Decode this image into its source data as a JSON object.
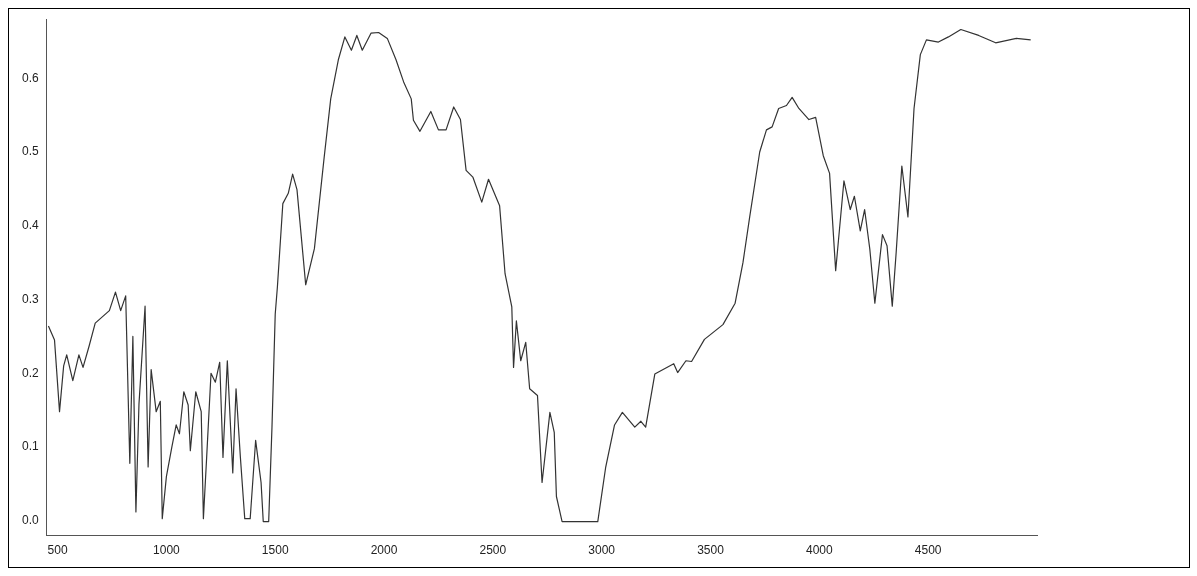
{
  "chart_data": {
    "type": "line",
    "xlim": [
      450,
      5000
    ],
    "ylim": [
      -0.02,
      0.68
    ],
    "xticks": [
      500,
      1000,
      1500,
      2000,
      2500,
      3000,
      3500,
      4000,
      4500
    ],
    "yticks": [
      {
        "value": 0,
        "label": "0.0"
      },
      {
        "value": 0.1,
        "label": "0.1"
      },
      {
        "value": 0.2,
        "label": "0.2"
      },
      {
        "value": 0.3,
        "label": "0.3"
      },
      {
        "value": 0.4,
        "label": "0.4"
      },
      {
        "value": 0.5,
        "label": "0.5"
      },
      {
        "value": 0.6,
        "label": "0.6"
      }
    ],
    "grid": false,
    "legend": false,
    "marker": "none",
    "line_style": "solid",
    "series": [
      {
        "color": "#333333",
        "x": [
          458,
          486,
          509,
          528,
          542,
          570,
          598,
          617,
          645,
          673,
          738,
          766,
          790,
          813,
          832,
          846,
          860,
          874,
          902,
          916,
          930,
          953,
          972,
          981,
          1000,
          1025,
          1045,
          1060,
          1080,
          1100,
          1110,
          1135,
          1160,
          1170,
          1185,
          1205,
          1225,
          1245,
          1260,
          1280,
          1305,
          1320,
          1340,
          1360,
          1385,
          1410,
          1435,
          1445,
          1470,
          1485,
          1500,
          1510,
          1535,
          1560,
          1580,
          1600,
          1640,
          1680,
          1725,
          1755,
          1790,
          1820,
          1850,
          1875,
          1900,
          1940,
          1975,
          2015,
          2055,
          2090,
          2125,
          2135,
          2165,
          2215,
          2250,
          2285,
          2320,
          2351,
          2377,
          2408,
          2449,
          2480,
          2531,
          2556,
          2587,
          2595,
          2608,
          2628,
          2651,
          2669,
          2705,
          2726,
          2762,
          2782,
          2792,
          2818,
          2982,
          3018,
          3059,
          3095,
          3152,
          3180,
          3202,
          3244,
          3331,
          3349,
          3387,
          3413,
          3472,
          3557,
          3613,
          3649,
          3680,
          3726,
          3757,
          3783,
          3813,
          3849,
          3875,
          3906,
          3952,
          3983,
          4018,
          4047,
          4075,
          4113,
          4142,
          4161,
          4188,
          4208,
          4232,
          4255,
          4290,
          4311,
          4335,
          4353,
          4379,
          4407,
          4435,
          4464,
          4492,
          4547,
          4593,
          4650,
          4732,
          4810,
          4905,
          4971
        ],
        "values": [
          0.264,
          0.245,
          0.148,
          0.21,
          0.225,
          0.19,
          0.225,
          0.208,
          0.237,
          0.268,
          0.285,
          0.31,
          0.285,
          0.305,
          0.078,
          0.25,
          0.012,
          0.158,
          0.291,
          0.073,
          0.205,
          0.148,
          0.162,
          0.003,
          0.06,
          0.1,
          0.13,
          0.118,
          0.175,
          0.157,
          0.095,
          0.175,
          0.148,
          0.003,
          0.086,
          0.2,
          0.188,
          0.215,
          0.086,
          0.217,
          0.065,
          0.179,
          0.086,
          0.003,
          0.003,
          0.109,
          0.052,
          -0.001,
          -0.001,
          0.126,
          0.28,
          0.317,
          0.43,
          0.444,
          0.47,
          0.449,
          0.32,
          0.369,
          0.493,
          0.572,
          0.625,
          0.656,
          0.638,
          0.658,
          0.638,
          0.661,
          0.662,
          0.654,
          0.625,
          0.595,
          0.572,
          0.543,
          0.528,
          0.555,
          0.53,
          0.53,
          0.561,
          0.544,
          0.475,
          0.466,
          0.432,
          0.463,
          0.427,
          0.335,
          0.29,
          0.208,
          0.271,
          0.217,
          0.242,
          0.179,
          0.17,
          0.052,
          0.147,
          0.12,
          0.033,
          -0.001,
          -0.001,
          0.072,
          0.13,
          0.147,
          0.127,
          0.135,
          0.127,
          0.199,
          0.213,
          0.201,
          0.217,
          0.216,
          0.246,
          0.266,
          0.295,
          0.35,
          0.412,
          0.5,
          0.53,
          0.534,
          0.559,
          0.563,
          0.574,
          0.559,
          0.544,
          0.547,
          0.495,
          0.471,
          0.339,
          0.461,
          0.422,
          0.44,
          0.393,
          0.422,
          0.368,
          0.295,
          0.388,
          0.373,
          0.291,
          0.364,
          0.481,
          0.412,
          0.559,
          0.632,
          0.652,
          0.649,
          0.656,
          0.666,
          0.658,
          0.648,
          0.654,
          0.652
        ]
      }
    ]
  }
}
